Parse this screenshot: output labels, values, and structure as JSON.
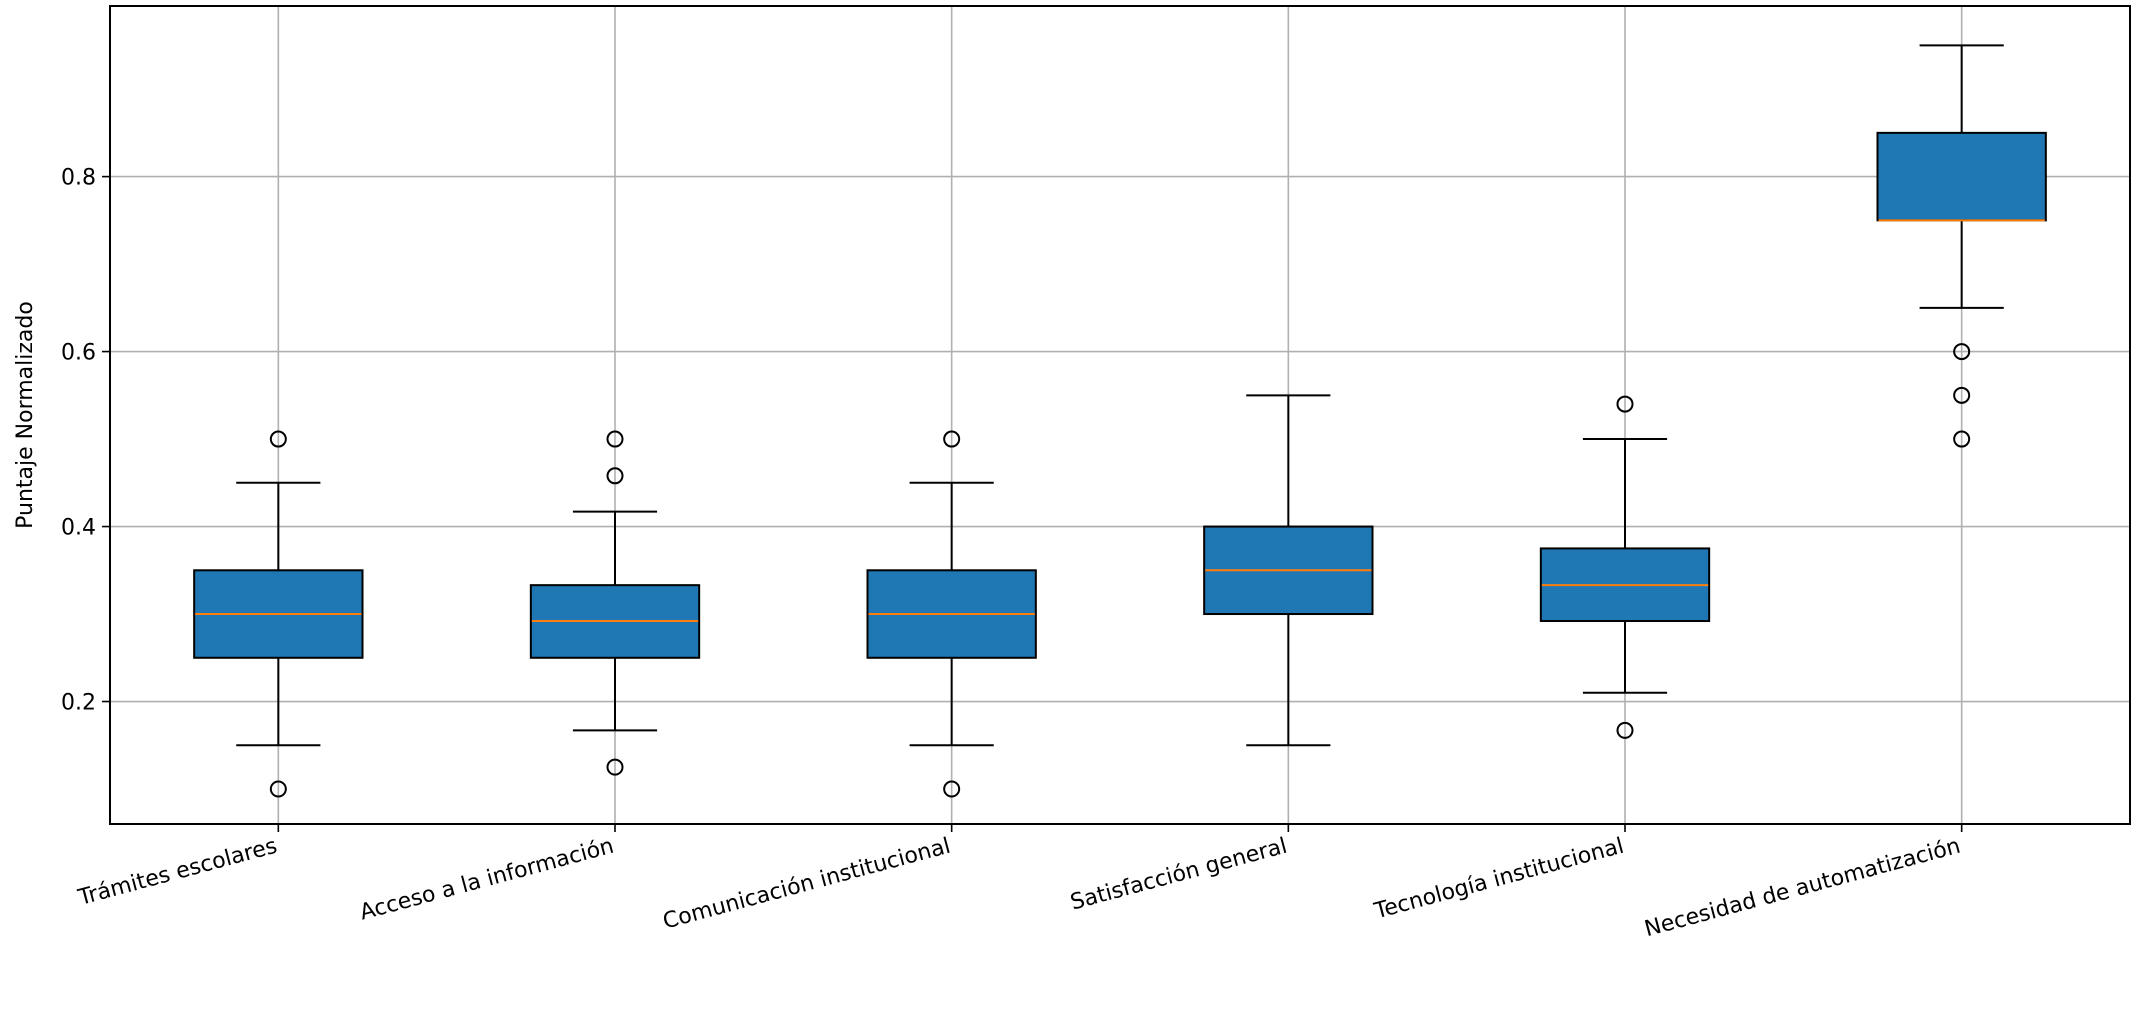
{
  "chart_data": {
    "type": "boxplot",
    "title": "",
    "xlabel": "",
    "ylabel": "Puntaje Normalizado",
    "ylim": [
      0.06,
      0.995
    ],
    "yticks": [
      0.2,
      0.4,
      0.6,
      0.8
    ],
    "grid": true,
    "legend": "none",
    "box_color": "#1f77b4",
    "median_color": "#ff7f0e",
    "categories": [
      "Trámites escolares",
      "Acceso a la información",
      "Comunicación institucional",
      "Satisfacción general",
      "Tecnología institucional",
      "Necesidad de automatización"
    ],
    "boxes": [
      {
        "whisker_low": 0.15,
        "q1": 0.25,
        "median": 0.3,
        "q3": 0.35,
        "whisker_high": 0.45,
        "outliers": [
          0.1,
          0.5
        ]
      },
      {
        "whisker_low": 0.167,
        "q1": 0.25,
        "median": 0.292,
        "q3": 0.333,
        "whisker_high": 0.417,
        "outliers": [
          0.125,
          0.458,
          0.5
        ]
      },
      {
        "whisker_low": 0.15,
        "q1": 0.25,
        "median": 0.3,
        "q3": 0.35,
        "whisker_high": 0.45,
        "outliers": [
          0.1,
          0.5
        ]
      },
      {
        "whisker_low": 0.15,
        "q1": 0.3,
        "median": 0.35,
        "q3": 0.4,
        "whisker_high": 0.55,
        "outliers": []
      },
      {
        "whisker_low": 0.21,
        "q1": 0.292,
        "median": 0.333,
        "q3": 0.375,
        "whisker_high": 0.5,
        "outliers": [
          0.167,
          0.54
        ]
      },
      {
        "whisker_low": 0.65,
        "q1": 0.75,
        "median": 0.75,
        "q3": 0.85,
        "whisker_high": 0.95,
        "outliers": [
          0.5,
          0.55,
          0.6
        ]
      }
    ]
  }
}
